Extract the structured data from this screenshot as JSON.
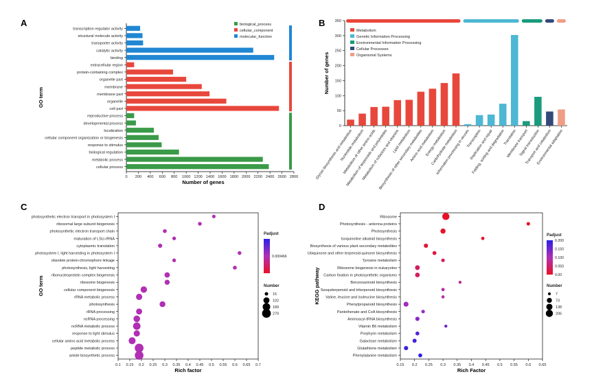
{
  "colors": {
    "biological_process": "#3a9a48",
    "cellular_component": "#e8473c",
    "molecular_function": "#1f87d3",
    "Metabolism": "#e8473c",
    "Genetic Information Processing": "#4db7d4",
    "Environmental Information Processing": "#1a9b7c",
    "Cellular Processes": "#34497a",
    "Organismal Systems": "#ef9d85",
    "padj_high": "#2b1fe6",
    "padj_mid": "#b02fb4",
    "padj_low": "#e81228"
  },
  "chart_data": [
    {
      "panel": "A",
      "type": "bar",
      "orientation": "horizontal",
      "ylabel": "GO term",
      "xlabel": "Number of genes",
      "xlim": [
        0,
        2800
      ],
      "xticks": [
        "0",
        "200",
        "400",
        "600",
        "800",
        "1000",
        "1200",
        "1400",
        "1600",
        "1800",
        "2000",
        "2200",
        "2400",
        "2600",
        "2800"
      ],
      "legend": [
        "biological_process",
        "cellular_component",
        "molecular_function"
      ],
      "legend_position": "top-right",
      "items": [
        {
          "label": "transcription regulator activity",
          "value": 230,
          "group": "molecular_function"
        },
        {
          "label": "structural molecule activity",
          "value": 270,
          "group": "molecular_function"
        },
        {
          "label": "transporter activity",
          "value": 280,
          "group": "molecular_function"
        },
        {
          "label": "catalytic activity",
          "value": 2120,
          "group": "molecular_function"
        },
        {
          "label": "binding",
          "value": 2470,
          "group": "molecular_function"
        },
        {
          "label": "extracellular region",
          "value": 130,
          "group": "cellular_component"
        },
        {
          "label": "protein-containing complex",
          "value": 780,
          "group": "cellular_component"
        },
        {
          "label": "organelle part",
          "value": 1000,
          "group": "cellular_component"
        },
        {
          "label": "membrane",
          "value": 1260,
          "group": "cellular_component"
        },
        {
          "label": "membrane part",
          "value": 1390,
          "group": "cellular_component"
        },
        {
          "label": "organelle",
          "value": 1670,
          "group": "cellular_component"
        },
        {
          "label": "cell part",
          "value": 2550,
          "group": "cellular_component"
        },
        {
          "label": "reproductive process",
          "value": 130,
          "group": "biological_process"
        },
        {
          "label": "developmental process",
          "value": 160,
          "group": "biological_process"
        },
        {
          "label": "localization",
          "value": 460,
          "group": "biological_process"
        },
        {
          "label": "cellular component organization or biogenesis",
          "value": 540,
          "group": "biological_process"
        },
        {
          "label": "response to stimulus",
          "value": 590,
          "group": "biological_process"
        },
        {
          "label": "biological regulation",
          "value": 880,
          "group": "biological_process"
        },
        {
          "label": "metabolic process",
          "value": 2280,
          "group": "biological_process"
        },
        {
          "label": "cellular process",
          "value": 2380,
          "group": "biological_process"
        }
      ]
    },
    {
      "panel": "B",
      "type": "bar",
      "ylabel": "Number of genes",
      "ylim": [
        0,
        350
      ],
      "yticks": [
        "0",
        "50",
        "100",
        "150",
        "200",
        "250",
        "300",
        "350"
      ],
      "legend": [
        "Metabolism",
        "Genetic Information Processing",
        "Environmental Information Processing",
        "Cellular Processes",
        "Organismal Systems"
      ],
      "legend_position": "top-left",
      "items": [
        {
          "label": "Glycan biosynthesis and metabolism",
          "value": 20,
          "group": "Metabolism"
        },
        {
          "label": "Nucleotide metabolism",
          "value": 40,
          "group": "Metabolism"
        },
        {
          "label": "Metabolism of other amino acids",
          "value": 62,
          "group": "Metabolism"
        },
        {
          "label": "Metabolism of terpenoids and polyketides",
          "value": 63,
          "group": "Metabolism"
        },
        {
          "label": "Metabolism of cofactors and vitamins",
          "value": 85,
          "group": "Metabolism"
        },
        {
          "label": "Lipid metabolism",
          "value": 86,
          "group": "Metabolism"
        },
        {
          "label": "Biosynthesis of other secondary metabolites",
          "value": 113,
          "group": "Metabolism"
        },
        {
          "label": "Amino acid metabolism",
          "value": 123,
          "group": "Metabolism"
        },
        {
          "label": "Energy metabolism",
          "value": 142,
          "group": "Metabolism"
        },
        {
          "label": "Carbohydrate metabolism",
          "value": 174,
          "group": "Metabolism"
        },
        {
          "label": "Information processing in viruses",
          "value": 5,
          "group": "Genetic Information Processing"
        },
        {
          "label": "Transcription",
          "value": 35,
          "group": "Genetic Information Processing"
        },
        {
          "label": "Replication and repair",
          "value": 37,
          "group": "Genetic Information Processing"
        },
        {
          "label": "Folding, sorting and degradation",
          "value": 73,
          "group": "Genetic Information Processing"
        },
        {
          "label": "Translation",
          "value": 302,
          "group": "Genetic Information Processing"
        },
        {
          "label": "Membrane transport",
          "value": 15,
          "group": "Environmental Information Processing"
        },
        {
          "label": "Signal transduction",
          "value": 96,
          "group": "Environmental Information Processing"
        },
        {
          "label": "Transport and catabolism",
          "value": 47,
          "group": "Cellular Processes"
        },
        {
          "label": "Environmental adaptation",
          "value": 54,
          "group": "Organismal Systems"
        }
      ]
    },
    {
      "panel": "C",
      "type": "scatter",
      "ylabel": "GO term",
      "xlabel": "Rich factor",
      "xlim": [
        0.1,
        0.7
      ],
      "xticks": [
        "0.1",
        "0.15",
        "0.2",
        "0.25",
        "0.3",
        "0.35",
        "0.4",
        "0.45",
        "0.5",
        "0.55",
        "0.6",
        "0.65",
        "0.7"
      ],
      "color_legend_title": "Padjust",
      "color_legend_ticks": [
        "0.000466"
      ],
      "size_legend_title": "Number",
      "size_legend_values": [
        "15",
        "102",
        "189",
        "279"
      ],
      "points": [
        {
          "term": "photosynthetic electron transport in photosystem I",
          "x": 0.51,
          "number": 15,
          "padj_frac": 0.5
        },
        {
          "term": "ribosomal large subunit biogenesis",
          "x": 0.45,
          "number": 20,
          "padj_frac": 0.5
        },
        {
          "term": "photosynthetic electron transport chain",
          "x": 0.3,
          "number": 22,
          "padj_frac": 0.5
        },
        {
          "term": "maturation of LSU-rRNA",
          "x": 0.34,
          "number": 18,
          "padj_frac": 0.5
        },
        {
          "term": "cytoplasmic translation",
          "x": 0.28,
          "number": 30,
          "padj_frac": 0.5
        },
        {
          "term": "photosystem I, light harvesting in photosystem I",
          "x": 0.62,
          "number": 20,
          "padj_frac": 0.5
        },
        {
          "term": "obsolete protein-chromophore linkage",
          "x": 0.34,
          "number": 18,
          "padj_frac": 0.5
        },
        {
          "term": "photosynthesis, light harvesting",
          "x": 0.6,
          "number": 22,
          "padj_frac": 0.5
        },
        {
          "term": "ribonucleoprotein complex biogenesis",
          "x": 0.31,
          "number": 70,
          "padj_frac": 0.5
        },
        {
          "term": "ribosome biogenesis",
          "x": 0.31,
          "number": 60,
          "padj_frac": 0.5
        },
        {
          "term": "cellular component biogenesis",
          "x": 0.21,
          "number": 120,
          "padj_frac": 0.5
        },
        {
          "term": "rRNA metabolic process",
          "x": 0.19,
          "number": 110,
          "padj_frac": 0.5
        },
        {
          "term": "photosynthesis",
          "x": 0.29,
          "number": 90,
          "padj_frac": 0.5
        },
        {
          "term": "rRNA processing",
          "x": 0.19,
          "number": 100,
          "padj_frac": 0.5
        },
        {
          "term": "ncRNA processing",
          "x": 0.18,
          "number": 130,
          "padj_frac": 0.5
        },
        {
          "term": "ncRNA metabolic process",
          "x": 0.18,
          "number": 180,
          "padj_frac": 0.5
        },
        {
          "term": "response to light stimulus",
          "x": 0.18,
          "number": 110,
          "padj_frac": 0.5
        },
        {
          "term": "cellular amino acid metabolic process",
          "x": 0.16,
          "number": 150,
          "padj_frac": 0.5
        },
        {
          "term": "peptide metabolic process",
          "x": 0.19,
          "number": 279,
          "padj_frac": 0.5
        },
        {
          "term": "amide biosynthetic process",
          "x": 0.19,
          "number": 270,
          "padj_frac": 0.5
        }
      ]
    },
    {
      "panel": "D",
      "type": "scatter",
      "ylabel": "KEGG pathway",
      "xlabel": "Rich Factor",
      "xlim": [
        0.15,
        0.65
      ],
      "xticks": [
        "0.15",
        "0.2",
        "0.25",
        "0.3",
        "0.35",
        "0.4",
        "0.45",
        "0.5",
        "0.55",
        "0.6",
        "0.65"
      ],
      "color_legend_title": "Padjust",
      "color_legend_ticks": [
        "0.200",
        "0.150",
        "0.100",
        "0.050",
        "0.00"
      ],
      "size_legend_title": "Number",
      "size_legend_values": [
        "7",
        "73",
        "138",
        "206"
      ],
      "points": [
        {
          "term": "Ribosome",
          "x": 0.31,
          "number": 206,
          "padj": 0.0
        },
        {
          "term": "Photosynthesis - antenna proteins",
          "x": 0.6,
          "number": 20,
          "padj": 0.0
        },
        {
          "term": "Photosynthesis",
          "x": 0.3,
          "number": 80,
          "padj": 0.0
        },
        {
          "term": "Isoquinoline alkaloid biosynthesis",
          "x": 0.44,
          "number": 15,
          "padj": 0.01
        },
        {
          "term": "Biosynthesis of various plant secondary metabolites",
          "x": 0.24,
          "number": 40,
          "padj": 0.01
        },
        {
          "term": "Ubiquinone and other terpenoid-quinone biosynthesis",
          "x": 0.27,
          "number": 30,
          "padj": 0.02
        },
        {
          "term": "Tyrosine metabolism",
          "x": 0.3,
          "number": 20,
          "padj": 0.03
        },
        {
          "term": "Ribosome biogenesis in eukaryotes",
          "x": 0.21,
          "number": 60,
          "padj": 0.04
        },
        {
          "term": "Carbon fixation in photosynthetic organisms",
          "x": 0.21,
          "number": 55,
          "padj": 0.04
        },
        {
          "term": "Benzoxazinoid biosynthesis",
          "x": 0.36,
          "number": 8,
          "padj": 0.08
        },
        {
          "term": "Sesquiterpenoid and triterpenoid biosynthesis",
          "x": 0.3,
          "number": 15,
          "padj": 0.09
        },
        {
          "term": "Valine, leucine and isoleucine biosynthesis",
          "x": 0.3,
          "number": 12,
          "padj": 0.1
        },
        {
          "term": "Phenylpropanoid biosynthesis",
          "x": 0.17,
          "number": 70,
          "padj": 0.11
        },
        {
          "term": "Pantothenate and CoA biosynthesis",
          "x": 0.23,
          "number": 20,
          "padj": 0.12
        },
        {
          "term": "Aminoacyl-tRNA biosynthesis",
          "x": 0.21,
          "number": 40,
          "padj": 0.13
        },
        {
          "term": "Vitamin B6 metabolism",
          "x": 0.31,
          "number": 10,
          "padj": 0.15
        },
        {
          "term": "Porphyrin metabolism",
          "x": 0.21,
          "number": 30,
          "padj": 0.17
        },
        {
          "term": "Galactose metabolism",
          "x": 0.2,
          "number": 35,
          "padj": 0.18
        },
        {
          "term": "Glutathione metabolism",
          "x": 0.17,
          "number": 40,
          "padj": 0.19
        },
        {
          "term": "Phenylalanine metabolism",
          "x": 0.22,
          "number": 30,
          "padj": 0.2
        }
      ]
    }
  ],
  "panels": {
    "a_letter": "A",
    "b_letter": "B",
    "c_letter": "C",
    "d_letter": "D"
  }
}
